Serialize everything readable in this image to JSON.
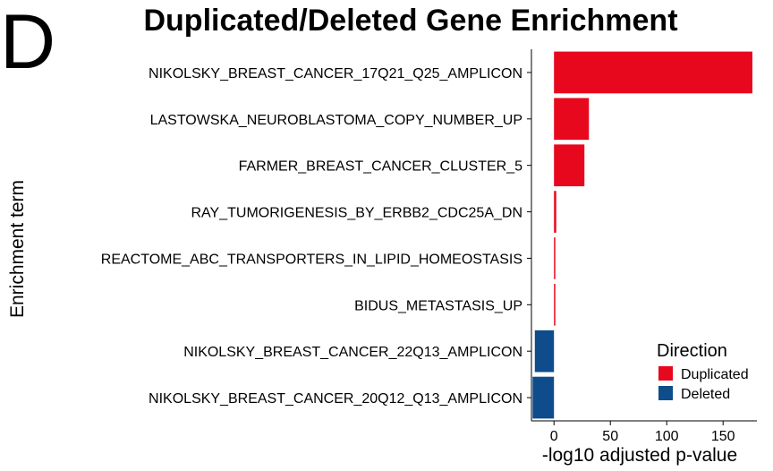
{
  "panel_letter": "D",
  "chart_data": {
    "type": "bar",
    "orientation": "horizontal",
    "title": "Duplicated/Deleted Gene Enrichment",
    "xlabel": "-log10 adjusted p-value",
    "ylabel": "Enrichment term",
    "xlim": [
      -20,
      180
    ],
    "xticks": [
      0,
      50,
      100,
      150
    ],
    "grid": false,
    "legend_position": "bottom-right",
    "legend": {
      "title": "Direction",
      "entries": [
        {
          "name": "Duplicated",
          "color": "#e8081e"
        },
        {
          "name": "Deleted",
          "color": "#0f4c8c"
        }
      ]
    },
    "categories": [
      "NIKOLSKY_BREAST_CANCER_17Q21_Q25_AMPLICON",
      "LASTOWSKA_NEUROBLASTOMA_COPY_NUMBER_UP",
      "FARMER_BREAST_CANCER_CLUSTER_5",
      "RAY_TUMORIGENESIS_BY_ERBB2_CDC25A_DN",
      "REACTOME_ABC_TRANSPORTERS_IN_LIPID_HOMEOSTASIS",
      "BIDUS_METASTASIS_UP",
      "NIKOLSKY_BREAST_CANCER_22Q13_AMPLICON",
      "NIKOLSKY_BREAST_CANCER_20Q12_Q13_AMPLICON"
    ],
    "values": [
      176,
      31,
      27,
      2,
      1,
      1,
      -17,
      -19
    ],
    "directions": [
      "Duplicated",
      "Duplicated",
      "Duplicated",
      "Duplicated",
      "Duplicated",
      "Duplicated",
      "Deleted",
      "Deleted"
    ]
  }
}
